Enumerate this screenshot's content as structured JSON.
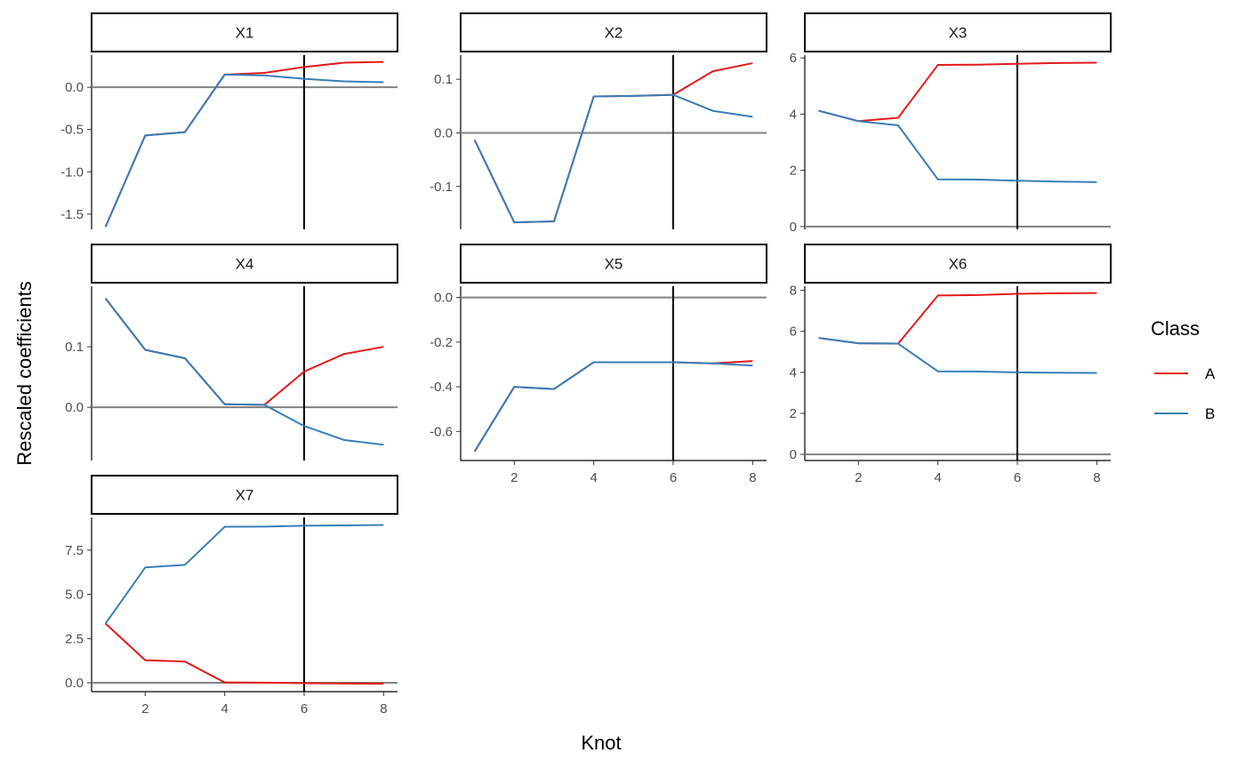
{
  "chart_data": {
    "type": "line",
    "facet_layout": "3x3 grid, 7 panels",
    "xlabel": "Knot",
    "ylabel": "Rescaled coefficients",
    "x": [
      1,
      2,
      3,
      4,
      5,
      6,
      7,
      8
    ],
    "x_ticks": [
      2,
      4,
      6,
      8
    ],
    "vline_x": 6,
    "hline_y": 0,
    "legend": {
      "title": "Class",
      "placement": "right",
      "entries": [
        {
          "label": "A",
          "color": "#E41A1C"
        },
        {
          "label": "B",
          "color": "#377EB8"
        }
      ]
    },
    "colors": {
      "A": "#E41A1C",
      "B": "#377EB8",
      "reference_line": "#808080",
      "vline": "#000000"
    },
    "panels": [
      {
        "title": "X1",
        "ylim": [
          -1.68,
          0.38
        ],
        "y_ticks": [
          -1.5,
          -1.0,
          -0.5,
          0.0
        ],
        "y_tick_labels": [
          "-1.5",
          "-1.0",
          "-0.5",
          "0.0"
        ],
        "series": [
          {
            "name": "A",
            "values": [
              -1.65,
              -0.57,
              -0.53,
              0.15,
              0.17,
              0.24,
              0.29,
              0.3
            ]
          },
          {
            "name": "B",
            "values": [
              -1.65,
              -0.57,
              -0.53,
              0.15,
              0.14,
              0.1,
              0.07,
              0.06
            ]
          }
        ]
      },
      {
        "title": "X2",
        "ylim": [
          -0.18,
          0.145
        ],
        "y_ticks": [
          -0.1,
          0.0,
          0.1
        ],
        "y_tick_labels": [
          "-0.1",
          "0.0",
          "0.1"
        ],
        "series": [
          {
            "name": "A",
            "values": [
              -0.013,
              -0.167,
              -0.165,
              0.068,
              0.069,
              0.071,
              0.115,
              0.13
            ]
          },
          {
            "name": "B",
            "values": [
              -0.013,
              -0.167,
              -0.165,
              0.068,
              0.069,
              0.071,
              0.041,
              0.03
            ]
          }
        ]
      },
      {
        "title": "X3",
        "ylim": [
          -0.1,
          6.1
        ],
        "y_ticks": [
          0,
          2,
          4,
          6
        ],
        "y_tick_labels": [
          "0",
          "2",
          "4",
          "6"
        ],
        "series": [
          {
            "name": "A",
            "values": [
              4.12,
              3.75,
              3.87,
              5.75,
              5.76,
              5.79,
              5.82,
              5.83
            ]
          },
          {
            "name": "B",
            "values": [
              4.12,
              3.75,
              3.6,
              1.68,
              1.67,
              1.63,
              1.6,
              1.58
            ]
          }
        ]
      },
      {
        "title": "X4",
        "ylim": [
          -0.088,
          0.2
        ],
        "y_ticks": [
          0.0,
          0.1
        ],
        "y_tick_labels": [
          "0.0",
          "0.1"
        ],
        "series": [
          {
            "name": "A",
            "values": [
              0.18,
              0.095,
              0.081,
              0.005,
              0.004,
              0.059,
              0.088,
              0.1
            ]
          },
          {
            "name": "B",
            "values": [
              0.18,
              0.095,
              0.081,
              0.005,
              0.004,
              -0.031,
              -0.054,
              -0.062
            ]
          }
        ]
      },
      {
        "title": "X5",
        "ylim": [
          -0.73,
          0.05
        ],
        "y_ticks": [
          -0.6,
          -0.4,
          -0.2,
          0.0
        ],
        "y_tick_labels": [
          "-0.6",
          "-0.4",
          "-0.2",
          "0.0"
        ],
        "series": [
          {
            "name": "A",
            "values": [
              -0.69,
              -0.4,
              -0.41,
              -0.29,
              -0.29,
              -0.29,
              -0.295,
              -0.285
            ]
          },
          {
            "name": "B",
            "values": [
              -0.69,
              -0.4,
              -0.41,
              -0.29,
              -0.29,
              -0.29,
              -0.295,
              -0.305
            ]
          }
        ]
      },
      {
        "title": "X6",
        "ylim": [
          -0.3,
          8.2
        ],
        "y_ticks": [
          0,
          2,
          4,
          6,
          8
        ],
        "y_tick_labels": [
          "0",
          "2",
          "4",
          "6",
          "8"
        ],
        "series": [
          {
            "name": "A",
            "values": [
              5.68,
              5.42,
              5.4,
              7.75,
              7.77,
              7.83,
              7.86,
              7.87
            ]
          },
          {
            "name": "B",
            "values": [
              5.68,
              5.42,
              5.4,
              4.05,
              4.04,
              4.0,
              3.98,
              3.97
            ]
          }
        ]
      },
      {
        "title": "X7",
        "ylim": [
          -0.5,
          9.35
        ],
        "y_ticks": [
          0.0,
          2.5,
          5.0,
          7.5
        ],
        "y_tick_labels": [
          "0.0",
          "2.5",
          "5.0",
          "7.5"
        ],
        "series": [
          {
            "name": "A",
            "values": [
              3.35,
              1.28,
              1.2,
              0.02,
              0.01,
              -0.02,
              -0.04,
              -0.05
            ]
          },
          {
            "name": "B",
            "values": [
              3.35,
              6.52,
              6.67,
              8.82,
              8.83,
              8.88,
              8.9,
              8.92
            ]
          }
        ]
      }
    ]
  }
}
